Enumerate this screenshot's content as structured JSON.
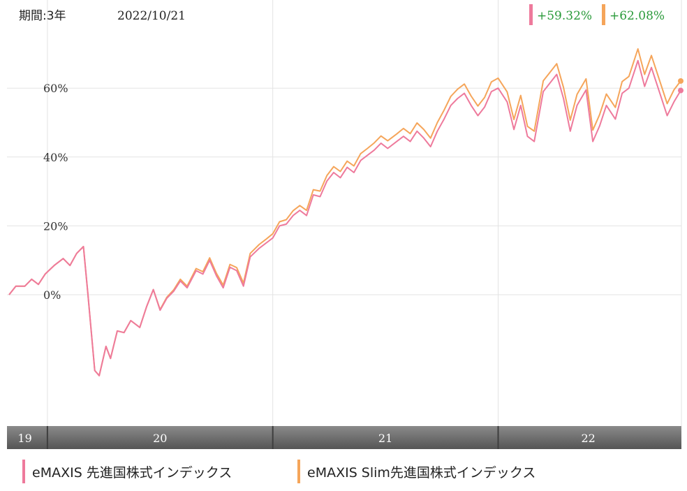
{
  "header": {
    "period_label": "期間:3年",
    "date_label": "2022/10/21",
    "badges": [
      {
        "text": "+59.32%",
        "color": "#ee7a9c"
      },
      {
        "text": "+62.08%",
        "color": "#f5a55a"
      }
    ]
  },
  "legend": {
    "items": [
      {
        "label": "eMAXIS 先進国株式インデックス",
        "color": "#ee7a9c"
      },
      {
        "label": "eMAXIS Slim先進国株式インデックス",
        "color": "#f5a55a"
      }
    ]
  },
  "chart_data": {
    "type": "line",
    "title": "",
    "xlabel": "",
    "ylabel": "",
    "x_start": 2019.83,
    "x_end": 2022.81,
    "ylim": [
      -38,
      83
    ],
    "y_ticks": [
      0,
      20,
      40,
      60
    ],
    "y_tick_labels": [
      "0%",
      "20%",
      "40%",
      "60%"
    ],
    "x_tick_labels": [
      {
        "label": "19",
        "x": 2019.9
      },
      {
        "label": "20",
        "x": 2020.5
      },
      {
        "label": "21",
        "x": 2021.5
      },
      {
        "label": "22",
        "x": 2022.4
      }
    ],
    "x_dividers": [
      2020.0,
      2021.0,
      2022.0
    ],
    "grid": true,
    "series": [
      {
        "name": "eMAXIS 先進国株式インデックス",
        "color": "#ee7a9c",
        "points": [
          [
            2019.83,
            0.0
          ],
          [
            2019.86,
            2.5
          ],
          [
            2019.9,
            2.5
          ],
          [
            2019.93,
            4.5
          ],
          [
            2019.96,
            3.0
          ],
          [
            2019.99,
            6.0
          ],
          [
            2020.03,
            8.5
          ],
          [
            2020.07,
            10.5
          ],
          [
            2020.1,
            8.5
          ],
          [
            2020.13,
            12.0
          ],
          [
            2020.16,
            14.0
          ],
          [
            2020.18,
            0.0
          ],
          [
            2020.21,
            -22.0
          ],
          [
            2020.23,
            -23.5
          ],
          [
            2020.26,
            -15.0
          ],
          [
            2020.28,
            -18.5
          ],
          [
            2020.31,
            -10.5
          ],
          [
            2020.34,
            -11.0
          ],
          [
            2020.37,
            -7.5
          ],
          [
            2020.41,
            -9.5
          ],
          [
            2020.44,
            -3.5
          ],
          [
            2020.47,
            1.5
          ],
          [
            2020.5,
            -4.5
          ],
          [
            2020.53,
            -1.0
          ],
          [
            2020.56,
            1.0
          ],
          [
            2020.59,
            4.0
          ],
          [
            2020.62,
            2.0
          ],
          [
            2020.66,
            7.0
          ],
          [
            2020.69,
            6.0
          ],
          [
            2020.72,
            10.0
          ],
          [
            2020.75,
            5.5
          ],
          [
            2020.78,
            2.0
          ],
          [
            2020.81,
            8.0
          ],
          [
            2020.84,
            7.0
          ],
          [
            2020.87,
            2.5
          ],
          [
            2020.9,
            11.0
          ],
          [
            2020.94,
            13.5
          ],
          [
            2020.97,
            15.0
          ],
          [
            2021.0,
            16.5
          ],
          [
            2021.03,
            20.0
          ],
          [
            2021.06,
            20.5
          ],
          [
            2021.09,
            23.0
          ],
          [
            2021.12,
            24.5
          ],
          [
            2021.15,
            23.0
          ],
          [
            2021.18,
            29.0
          ],
          [
            2021.21,
            28.5
          ],
          [
            2021.24,
            33.0
          ],
          [
            2021.27,
            35.5
          ],
          [
            2021.3,
            34.0
          ],
          [
            2021.33,
            37.0
          ],
          [
            2021.36,
            35.5
          ],
          [
            2021.39,
            39.0
          ],
          [
            2021.42,
            40.5
          ],
          [
            2021.45,
            42.0
          ],
          [
            2021.48,
            44.0
          ],
          [
            2021.51,
            42.5
          ],
          [
            2021.55,
            44.5
          ],
          [
            2021.58,
            46.0
          ],
          [
            2021.61,
            44.5
          ],
          [
            2021.64,
            47.5
          ],
          [
            2021.67,
            45.5
          ],
          [
            2021.7,
            43.0
          ],
          [
            2021.73,
            47.5
          ],
          [
            2021.76,
            51.0
          ],
          [
            2021.79,
            55.0
          ],
          [
            2021.82,
            57.0
          ],
          [
            2021.85,
            58.5
          ],
          [
            2021.88,
            55.0
          ],
          [
            2021.91,
            52.0
          ],
          [
            2021.94,
            54.5
          ],
          [
            2021.97,
            59.0
          ],
          [
            2022.0,
            60.0
          ],
          [
            2022.04,
            56.0
          ],
          [
            2022.07,
            48.0
          ],
          [
            2022.1,
            55.0
          ],
          [
            2022.13,
            46.0
          ],
          [
            2022.16,
            44.5
          ],
          [
            2022.2,
            59.0
          ],
          [
            2022.23,
            61.5
          ],
          [
            2022.26,
            64.0
          ],
          [
            2022.29,
            57.0
          ],
          [
            2022.32,
            47.5
          ],
          [
            2022.35,
            55.0
          ],
          [
            2022.39,
            59.5
          ],
          [
            2022.42,
            44.5
          ],
          [
            2022.45,
            49.0
          ],
          [
            2022.48,
            55.0
          ],
          [
            2022.52,
            51.0
          ],
          [
            2022.55,
            58.5
          ],
          [
            2022.58,
            60.0
          ],
          [
            2022.62,
            68.0
          ],
          [
            2022.65,
            60.5
          ],
          [
            2022.68,
            66.0
          ],
          [
            2022.71,
            60.0
          ],
          [
            2022.75,
            52.0
          ],
          [
            2022.78,
            56.0
          ],
          [
            2022.81,
            59.32
          ]
        ]
      },
      {
        "name": "eMAXIS Slim先進国株式インデックス",
        "color": "#f5a55a",
        "points": [
          [
            2019.83,
            0.0
          ],
          [
            2019.86,
            2.5
          ],
          [
            2019.9,
            2.5
          ],
          [
            2019.93,
            4.5
          ],
          [
            2019.96,
            3.0
          ],
          [
            2019.99,
            6.0
          ],
          [
            2020.03,
            8.5
          ],
          [
            2020.07,
            10.5
          ],
          [
            2020.1,
            8.5
          ],
          [
            2020.13,
            12.0
          ],
          [
            2020.16,
            14.0
          ],
          [
            2020.18,
            0.0
          ],
          [
            2020.21,
            -22.0
          ],
          [
            2020.23,
            -23.5
          ],
          [
            2020.26,
            -15.0
          ],
          [
            2020.28,
            -18.5
          ],
          [
            2020.31,
            -10.5
          ],
          [
            2020.34,
            -11.0
          ],
          [
            2020.37,
            -7.5
          ],
          [
            2020.41,
            -9.5
          ],
          [
            2020.44,
            -3.5
          ],
          [
            2020.47,
            1.5
          ],
          [
            2020.5,
            -4.3
          ],
          [
            2020.53,
            -0.7
          ],
          [
            2020.56,
            1.4
          ],
          [
            2020.59,
            4.5
          ],
          [
            2020.62,
            2.5
          ],
          [
            2020.66,
            7.6
          ],
          [
            2020.69,
            6.7
          ],
          [
            2020.72,
            10.7
          ],
          [
            2020.75,
            6.2
          ],
          [
            2020.78,
            2.8
          ],
          [
            2020.81,
            8.8
          ],
          [
            2020.84,
            7.9
          ],
          [
            2020.87,
            3.4
          ],
          [
            2020.9,
            12.0
          ],
          [
            2020.94,
            14.6
          ],
          [
            2020.97,
            16.1
          ],
          [
            2021.0,
            17.7
          ],
          [
            2021.03,
            21.2
          ],
          [
            2021.06,
            21.8
          ],
          [
            2021.09,
            24.4
          ],
          [
            2021.12,
            25.9
          ],
          [
            2021.15,
            24.5
          ],
          [
            2021.18,
            30.5
          ],
          [
            2021.21,
            30.1
          ],
          [
            2021.24,
            34.6
          ],
          [
            2021.27,
            37.2
          ],
          [
            2021.3,
            35.8
          ],
          [
            2021.33,
            38.8
          ],
          [
            2021.36,
            37.4
          ],
          [
            2021.39,
            41.0
          ],
          [
            2021.42,
            42.5
          ],
          [
            2021.45,
            44.1
          ],
          [
            2021.48,
            46.1
          ],
          [
            2021.51,
            44.7
          ],
          [
            2021.55,
            46.7
          ],
          [
            2021.58,
            48.3
          ],
          [
            2021.61,
            46.8
          ],
          [
            2021.64,
            49.9
          ],
          [
            2021.67,
            48.0
          ],
          [
            2021.7,
            45.5
          ],
          [
            2021.73,
            50.0
          ],
          [
            2021.76,
            53.6
          ],
          [
            2021.79,
            57.6
          ],
          [
            2021.82,
            59.7
          ],
          [
            2021.85,
            61.2
          ],
          [
            2021.88,
            57.7
          ],
          [
            2021.91,
            54.8
          ],
          [
            2021.94,
            57.3
          ],
          [
            2021.97,
            61.8
          ],
          [
            2022.0,
            62.9
          ],
          [
            2022.04,
            58.9
          ],
          [
            2022.07,
            50.9
          ],
          [
            2022.1,
            57.9
          ],
          [
            2022.13,
            48.9
          ],
          [
            2022.16,
            47.5
          ],
          [
            2022.2,
            62.1
          ],
          [
            2022.23,
            64.6
          ],
          [
            2022.26,
            67.1
          ],
          [
            2022.29,
            60.2
          ],
          [
            2022.32,
            50.7
          ],
          [
            2022.35,
            58.2
          ],
          [
            2022.39,
            62.7
          ],
          [
            2022.42,
            47.8
          ],
          [
            2022.45,
            52.3
          ],
          [
            2022.48,
            58.3
          ],
          [
            2022.52,
            54.4
          ],
          [
            2022.55,
            61.9
          ],
          [
            2022.58,
            63.4
          ],
          [
            2022.62,
            71.4
          ],
          [
            2022.65,
            64.0
          ],
          [
            2022.68,
            69.5
          ],
          [
            2022.71,
            63.5
          ],
          [
            2022.75,
            55.5
          ],
          [
            2022.78,
            59.5
          ],
          [
            2022.81,
            62.08
          ]
        ]
      }
    ]
  }
}
